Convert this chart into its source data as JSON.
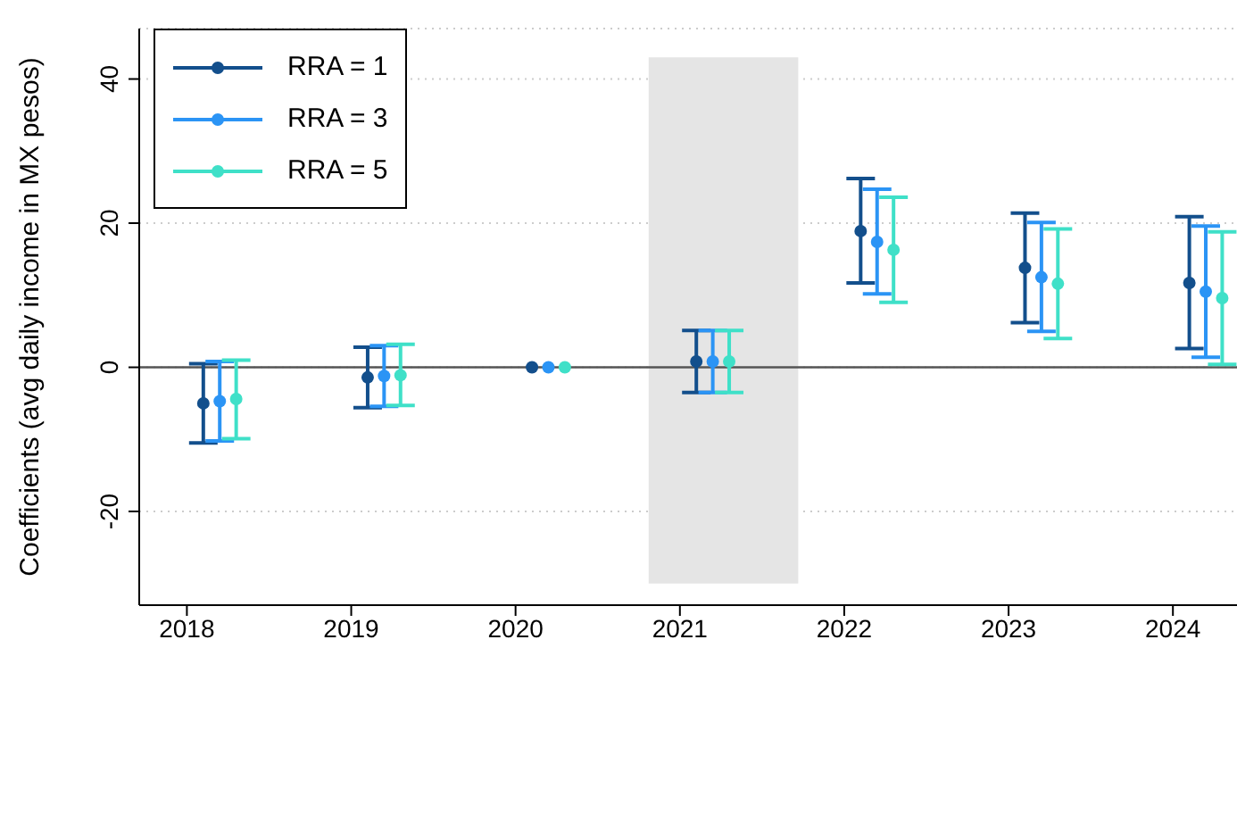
{
  "chart_data": {
    "type": "scatter",
    "ylabel": "Coefficients (avg daily income in MX pesos)",
    "xlim": [
      2017.71,
      2024.39
    ],
    "xticks": [
      2018,
      2019,
      2020,
      2021,
      2022,
      2023,
      2024
    ],
    "ylim": [
      -33,
      47
    ],
    "yticks": [
      -20,
      0,
      20,
      40
    ],
    "grid": "y",
    "legend": "top left",
    "marker": "circle",
    "ref_lines": [
      {
        "axis": "y",
        "value": 0,
        "color": "#555555"
      }
    ],
    "bands": [
      {
        "axis": "x",
        "from": 2020.81,
        "to": 2021.72,
        "color": "#e5e5e5"
      }
    ],
    "series": [
      {
        "name": "RRA = 1",
        "color": "#134f8c",
        "x": [
          2018.1,
          2019.1,
          2020.1,
          2021.1,
          2022.1,
          2023.1,
          2024.1
        ],
        "values": [
          -5.0,
          -1.4,
          0,
          0.8,
          18.9,
          13.8,
          11.7
        ],
        "errors": [
          [
            -10.5,
            0.5
          ],
          [
            -5.6,
            2.8
          ],
          null,
          [
            -3.5,
            5.1
          ],
          [
            11.7,
            26.2
          ],
          [
            6.2,
            21.4
          ],
          [
            2.6,
            20.9
          ]
        ]
      },
      {
        "name": "RRA = 3",
        "color": "#2b94f5",
        "x": [
          2018.2,
          2019.2,
          2020.2,
          2021.2,
          2022.2,
          2023.2,
          2024.2
        ],
        "values": [
          -4.7,
          -1.2,
          0,
          0.8,
          17.4,
          12.5,
          10.5
        ],
        "errors": [
          [
            -10.2,
            0.8
          ],
          [
            -5.4,
            3.0
          ],
          null,
          [
            -3.5,
            5.1
          ],
          [
            10.2,
            24.7
          ],
          [
            5.0,
            20.1
          ],
          [
            1.4,
            19.6
          ]
        ]
      },
      {
        "name": "RRA = 5",
        "color": "#3fe0c8",
        "x": [
          2018.3,
          2019.3,
          2020.3,
          2021.3,
          2022.3,
          2023.3,
          2024.3
        ],
        "values": [
          -4.4,
          -1.1,
          0,
          0.8,
          16.3,
          11.6,
          9.6
        ],
        "errors": [
          [
            -9.9,
            1.0
          ],
          [
            -5.3,
            3.2
          ],
          null,
          [
            -3.5,
            5.1
          ],
          [
            9.0,
            23.6
          ],
          [
            4.0,
            19.2
          ],
          [
            0.4,
            18.8
          ]
        ]
      }
    ]
  }
}
